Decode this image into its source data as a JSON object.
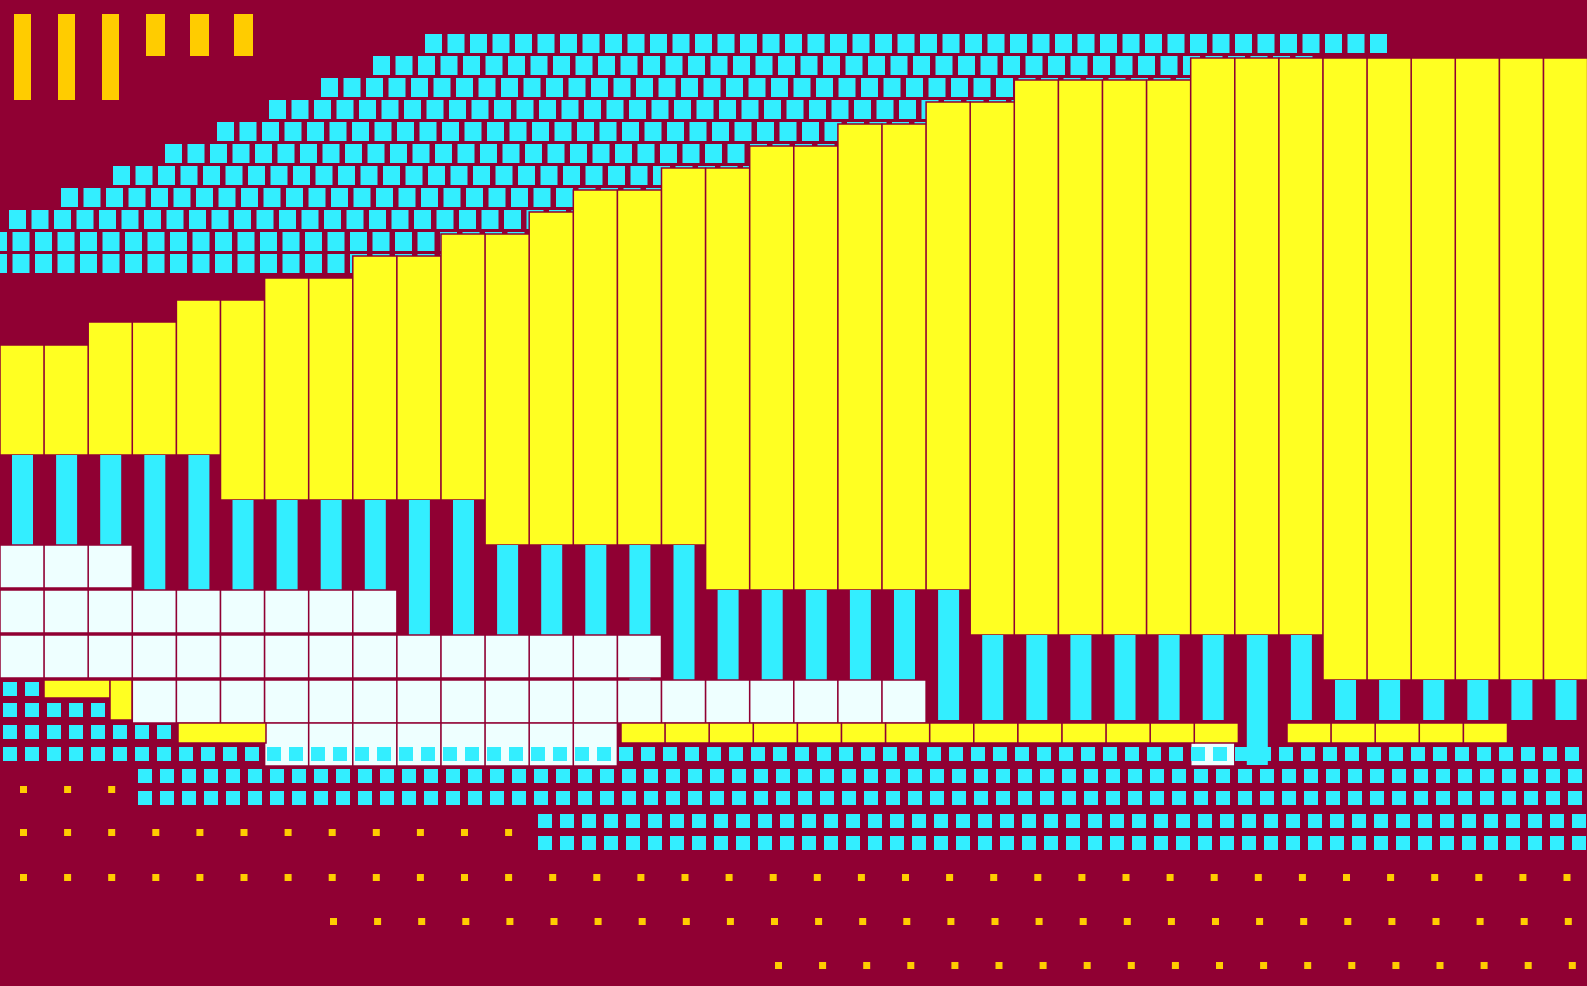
{
  "palette": {
    "background": "#900033",
    "yellow": "#FFFF22",
    "gold": "#FFCC00",
    "cyan": "#33EEFF",
    "pale": "#EEFFFF",
    "stroke": "#900033"
  },
  "columns": 36,
  "bands": {
    "cyan_diag_top": [
      12,
      13,
      14,
      14,
      15,
      15,
      16,
      17,
      17,
      18,
      19,
      19,
      20,
      21,
      21,
      22,
      23,
      24,
      24,
      25,
      26,
      26,
      27,
      28,
      28,
      29,
      30,
      30,
      31
    ],
    "yellow_tops": [
      7,
      7,
      7,
      7,
      7,
      6,
      6,
      5,
      5,
      4,
      4,
      3,
      3,
      3,
      2,
      2,
      2,
      2,
      1,
      1,
      1,
      0,
      0,
      0,
      0,
      0,
      0,
      0,
      0,
      0,
      0,
      0,
      0,
      0,
      0,
      0
    ],
    "yellow_bottoms": [
      10,
      10,
      10,
      10,
      10,
      11,
      11,
      11,
      11,
      11,
      11,
      12,
      12,
      12,
      12,
      12,
      13,
      13,
      13,
      13,
      13,
      13,
      14,
      14,
      14,
      14,
      14,
      14,
      14,
      14,
      15,
      15,
      15,
      15,
      15,
      15
    ]
  }
}
